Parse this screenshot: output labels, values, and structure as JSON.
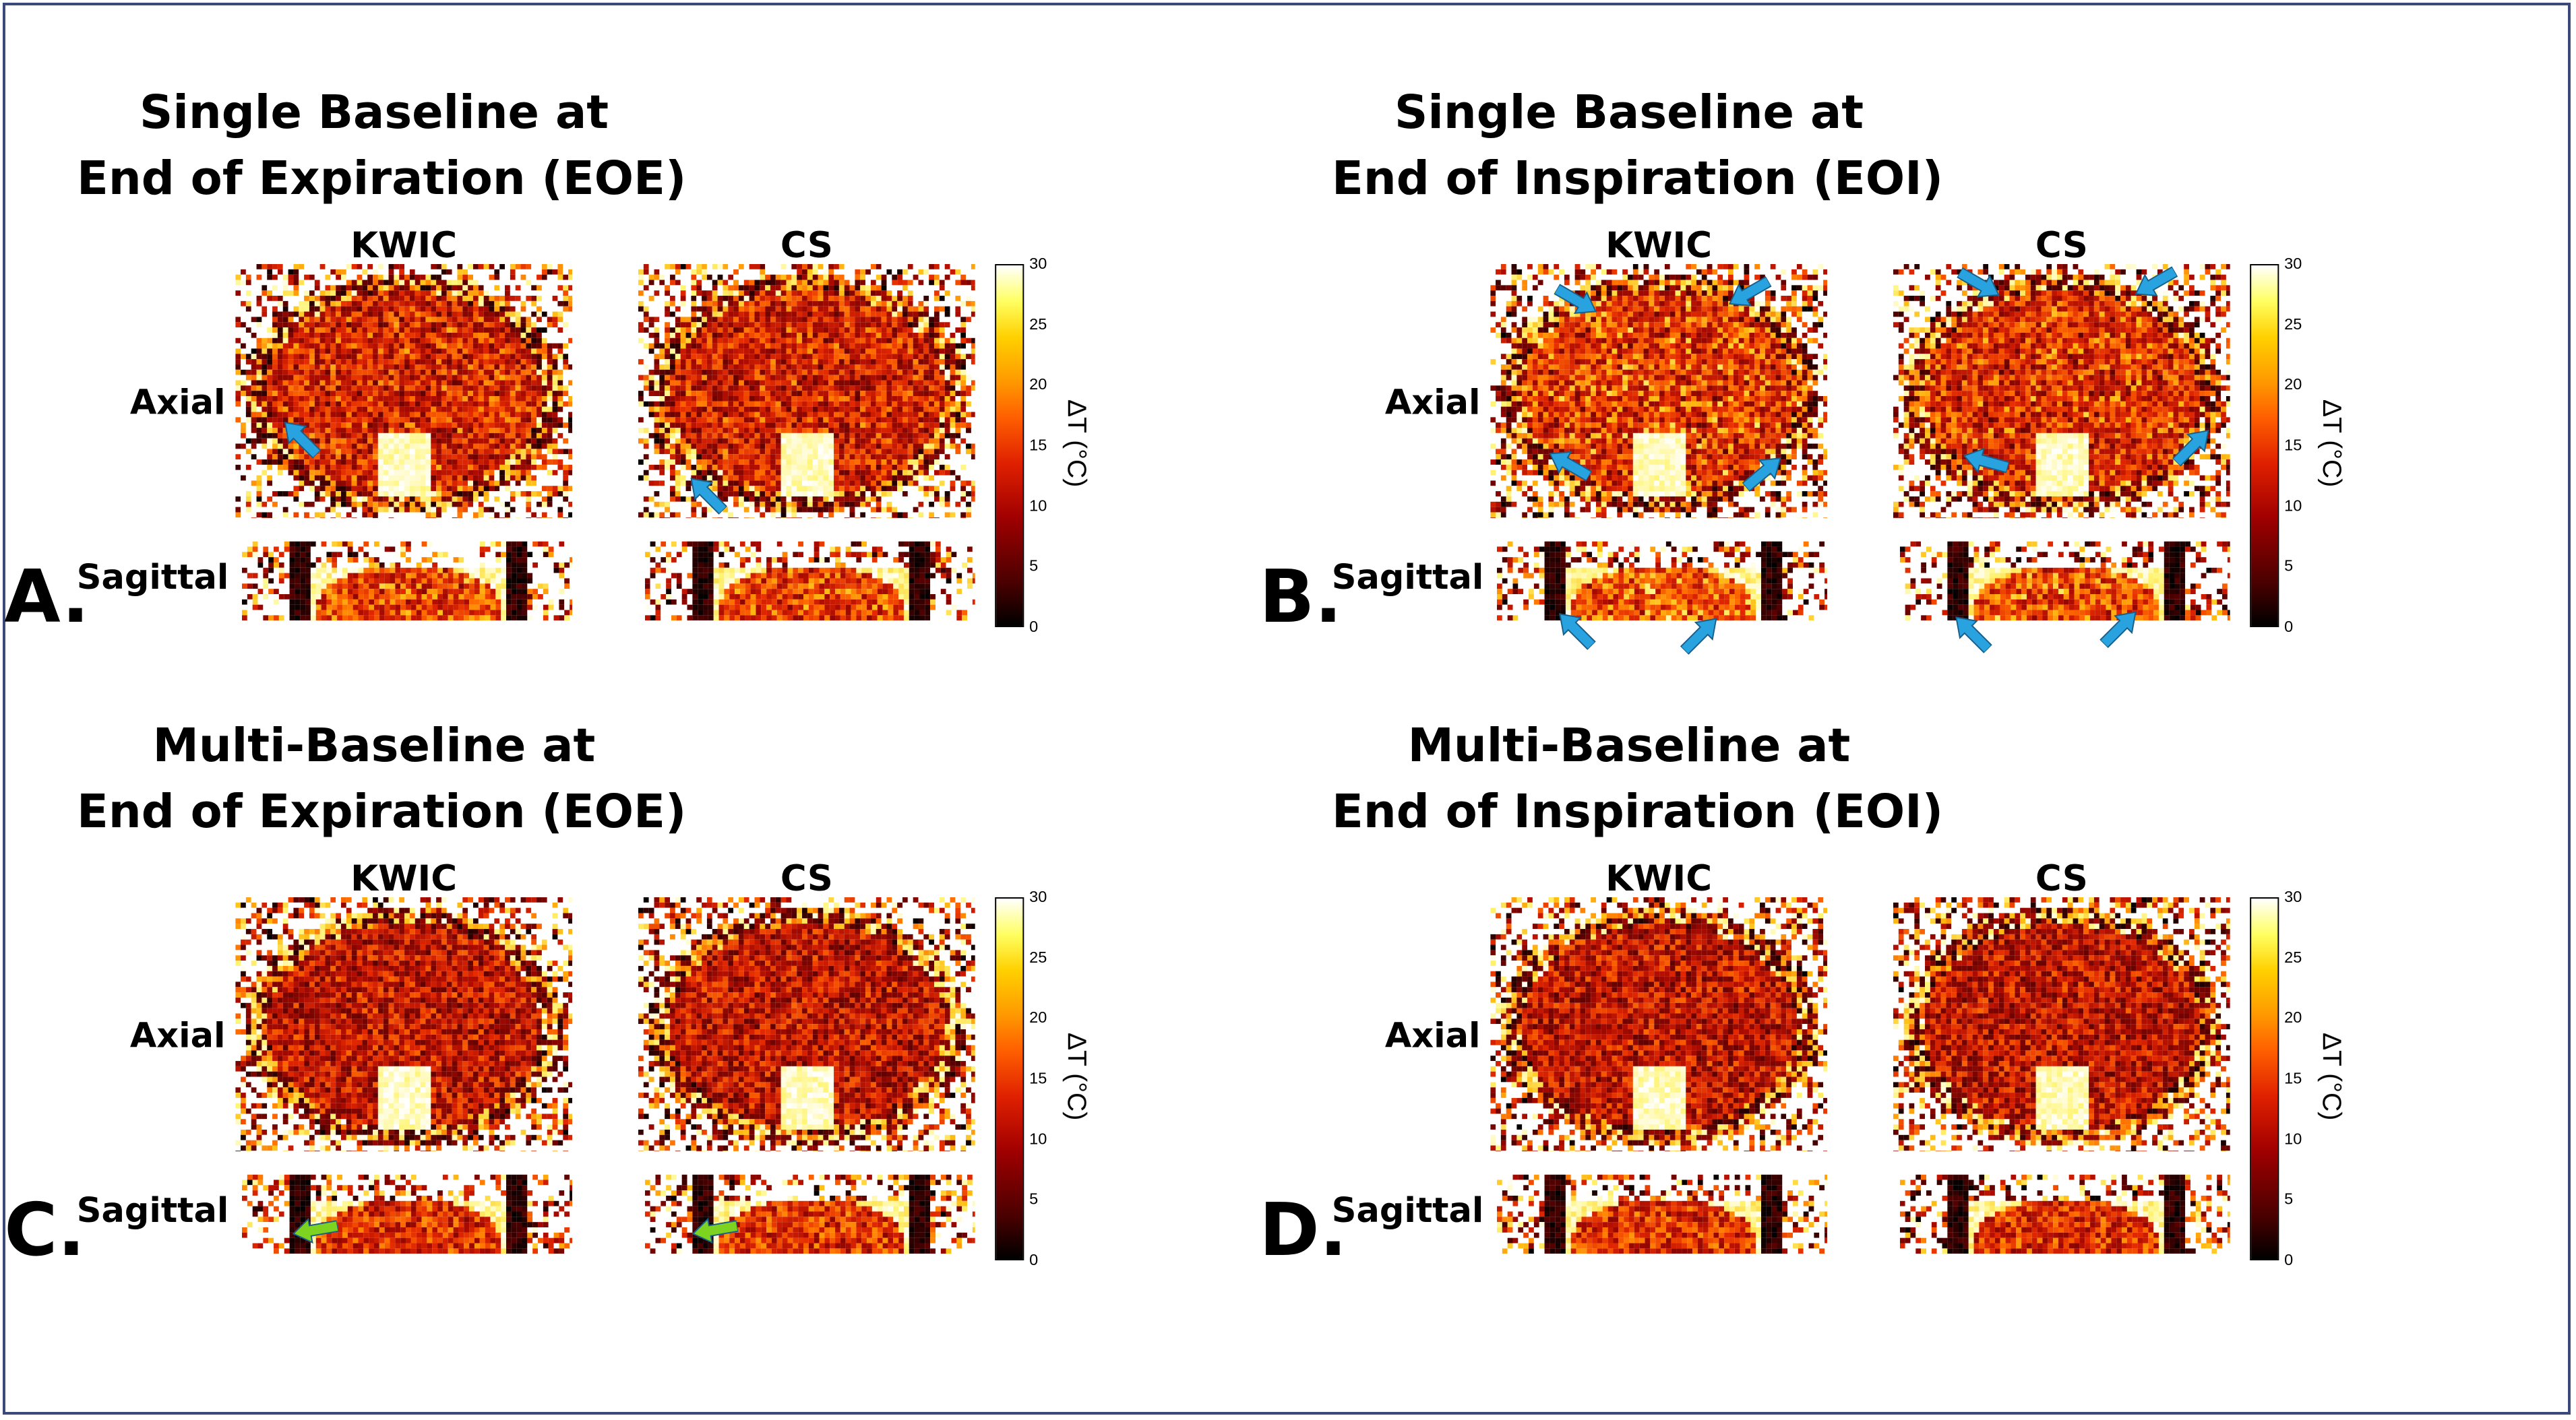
{
  "figure": {
    "panels": [
      {
        "letter": "A.",
        "title_line1": "Single Baseline at",
        "title_line2": "End of Expiration (EOE)",
        "col1": "KWIC",
        "col2": "CS",
        "row1": "Axial",
        "row2": "Sagittal"
      },
      {
        "letter": "B.",
        "title_line1": "Single Baseline at",
        "title_line2": "End of Inspiration (EOI)",
        "col1": "KWIC",
        "col2": "CS",
        "row1": "Axial",
        "row2": "Sagittal"
      },
      {
        "letter": "C.",
        "title_line1": "Multi-Baseline at",
        "title_line2": "End of Expiration (EOE)",
        "col1": "KWIC",
        "col2": "CS",
        "row1": "Axial",
        "row2": "Sagittal"
      },
      {
        "letter": "D.",
        "title_line1": "Multi-Baseline at",
        "title_line2": "End of Inspiration (EOI)",
        "col1": "KWIC",
        "col2": "CS",
        "row1": "Axial",
        "row2": "Sagittal"
      }
    ],
    "colorbar": {
      "title": "ΔT (°C)",
      "ticks": [
        "30",
        "25",
        "20",
        "15",
        "10",
        "5",
        "0"
      ]
    },
    "colors": {
      "arrow_blue": "#29a3e0",
      "arrow_green": "#7ed321",
      "frame": "#3b4a7a"
    }
  }
}
